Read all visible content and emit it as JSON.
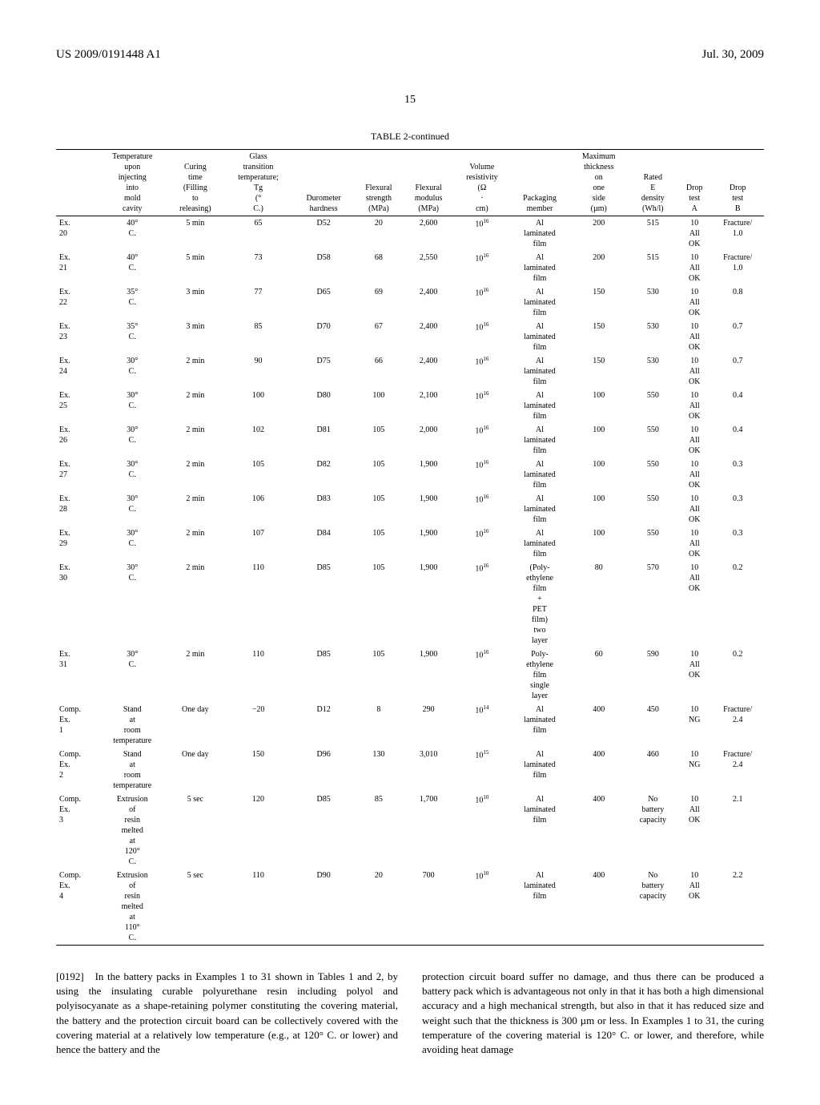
{
  "header": {
    "left": "US 2009/0191448 A1",
    "right": "Jul. 30, 2009"
  },
  "page_number": "15",
  "table": {
    "caption": "TABLE 2-continued",
    "columns": [
      "",
      "Temperature upon injecting into mold cavity",
      "Curing time (Filling to releasing)",
      "Glass transition temperature; Tg (° C.)",
      "Durometer hardness",
      "Flexural strength (MPa)",
      "Flexural modulus (MPa)",
      "Volume resistivity (Ω · cm)",
      "Packaging member",
      "Maximum thickness on one side (µm)",
      "Rated E density (Wh/l)",
      "Drop test A",
      "Drop test B"
    ],
    "rows": [
      [
        "Ex. 20",
        "40° C.",
        "5 min",
        "65",
        "D52",
        "20",
        "2,600",
        "10^16",
        "Al laminated film",
        "200",
        "515",
        "10 All OK",
        "Fracture/ 1.0"
      ],
      [
        "Ex. 21",
        "40° C.",
        "5 min",
        "73",
        "D58",
        "68",
        "2,550",
        "10^16",
        "Al laminated film",
        "200",
        "515",
        "10 All OK",
        "Fracture/ 1.0"
      ],
      [
        "Ex. 22",
        "35° C.",
        "3 min",
        "77",
        "D65",
        "69",
        "2,400",
        "10^16",
        "Al laminated film",
        "150",
        "530",
        "10 All OK",
        "0.8"
      ],
      [
        "Ex. 23",
        "35° C.",
        "3 min",
        "85",
        "D70",
        "67",
        "2,400",
        "10^16",
        "Al laminated film",
        "150",
        "530",
        "10 All OK",
        "0.7"
      ],
      [
        "Ex. 24",
        "30° C.",
        "2 min",
        "90",
        "D75",
        "66",
        "2,400",
        "10^16",
        "Al laminated film",
        "150",
        "530",
        "10 All OK",
        "0.7"
      ],
      [
        "Ex. 25",
        "30° C.",
        "2 min",
        "100",
        "D80",
        "100",
        "2,100",
        "10^16",
        "Al laminated film",
        "100",
        "550",
        "10 All OK",
        "0.4"
      ],
      [
        "Ex. 26",
        "30° C.",
        "2 min",
        "102",
        "D81",
        "105",
        "2,000",
        "10^16",
        "Al laminated film",
        "100",
        "550",
        "10 All OK",
        "0.4"
      ],
      [
        "Ex. 27",
        "30° C.",
        "2 min",
        "105",
        "D82",
        "105",
        "1,900",
        "10^16",
        "Al laminated film",
        "100",
        "550",
        "10 All OK",
        "0.3"
      ],
      [
        "Ex. 28",
        "30° C.",
        "2 min",
        "106",
        "D83",
        "105",
        "1,900",
        "10^16",
        "Al laminated film",
        "100",
        "550",
        "10 All OK",
        "0.3"
      ],
      [
        "Ex. 29",
        "30° C.",
        "2 min",
        "107",
        "D84",
        "105",
        "1,900",
        "10^16",
        "Al laminated film",
        "100",
        "550",
        "10 All OK",
        "0.3"
      ],
      [
        "Ex. 30",
        "30° C.",
        "2 min",
        "110",
        "D85",
        "105",
        "1,900",
        "10^16",
        "(Poly- ethylene film + PET film) two layer",
        "80",
        "570",
        "10 All OK",
        "0.2"
      ],
      [
        "Ex. 31",
        "30° C.",
        "2 min",
        "110",
        "D85",
        "105",
        "1,900",
        "10^16",
        "Poly- ethylene film single layer",
        "60",
        "590",
        "10 All OK",
        "0.2"
      ],
      [
        "Comp. Ex. 1",
        "Stand at room temperature",
        "One day",
        "−20",
        "D12",
        "8",
        "290",
        "10^14",
        "Al laminated film",
        "400",
        "450",
        "10 NG",
        "Fracture/ 2.4"
      ],
      [
        "Comp. Ex. 2",
        "Stand at room temperature",
        "One day",
        "150",
        "D96",
        "130",
        "3,010",
        "10^15",
        "Al laminated film",
        "400",
        "460",
        "10 NG",
        "Fracture/ 2.4"
      ],
      [
        "Comp. Ex. 3",
        "Extrusion of resin melted at 120° C.",
        "5 sec",
        "120",
        "D85",
        "85",
        "1,700",
        "10^10",
        "Al laminated film",
        "400",
        "No battery capacity",
        "10 All OK",
        "2.1"
      ],
      [
        "Comp. Ex. 4",
        "Extrusion of resin melted at 110° C.",
        "5 sec",
        "110",
        "D90",
        "20",
        "700",
        "10^10",
        "Al laminated film",
        "400",
        "No battery capacity",
        "10 All OK",
        "2.2"
      ]
    ]
  },
  "body": {
    "para_number": "[0192]",
    "left": "In the battery packs in Examples 1 to 31 shown in Tables 1 and 2, by using the insulating curable polyurethane resin including polyol and polyisocyanate as a shape-retaining polymer constituting the covering material, the battery and the protection circuit board can be collectively covered with the covering material at a relatively low temperature (e.g., at 120° C. or lower) and hence the battery and the",
    "right": "protection circuit board suffer no damage, and thus there can be produced a battery pack which is advantageous not only in that it has both a high dimensional accuracy and a high mechanical strength, but also in that it has reduced size and weight such that the thickness is 300 µm or less. In Examples 1 to 31, the curing temperature of the covering material is 120° C. or lower, and therefore, while avoiding heat damage"
  }
}
